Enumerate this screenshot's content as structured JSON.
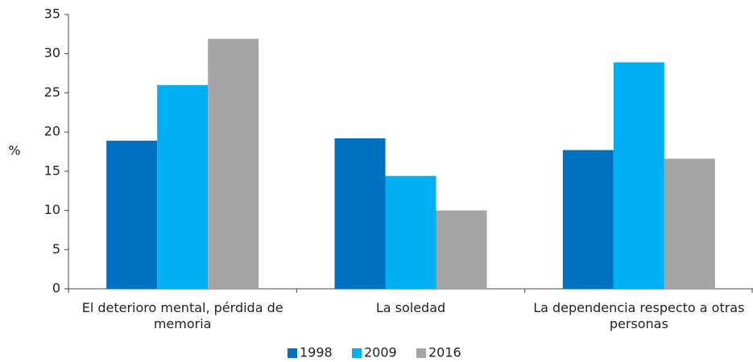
{
  "chart_data": {
    "type": "bar",
    "y_label": "%",
    "categories": [
      "El deterioro mental, pérdida de memoria",
      "La soledad",
      "La dependencia respecto a otras personas"
    ],
    "series": [
      {
        "name": "1998",
        "color": "#0070c0",
        "values": [
          18.9,
          19.2,
          17.7
        ]
      },
      {
        "name": "2009",
        "color": "#00b0f0",
        "values": [
          26,
          14.4,
          28.9
        ]
      },
      {
        "name": "2016",
        "color": "#a5a5a5",
        "values": [
          31.9,
          10,
          16.6
        ]
      }
    ],
    "ylim": [
      0,
      35
    ],
    "yticks": [
      0,
      5,
      10,
      15,
      20,
      25,
      30,
      35
    ],
    "legend": "bottom"
  }
}
